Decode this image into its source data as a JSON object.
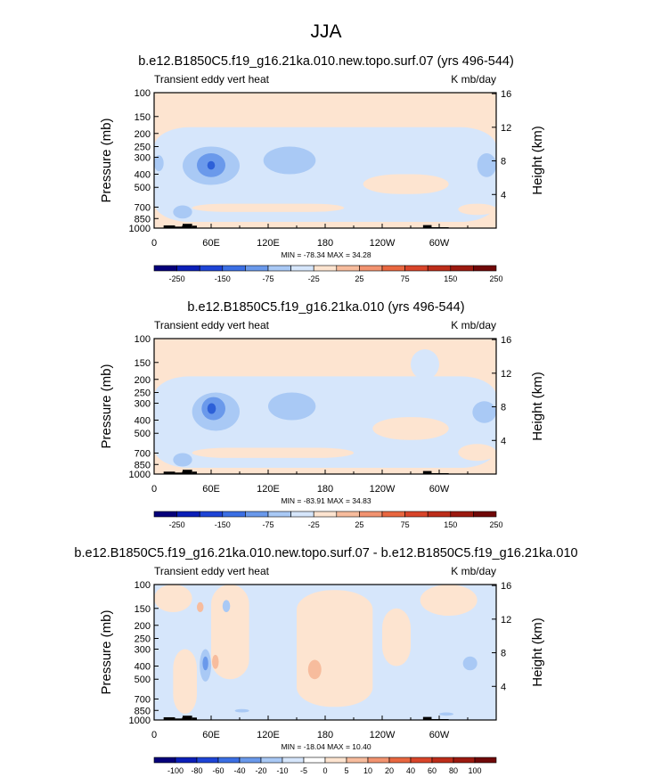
{
  "figure_title": "JJA",
  "chart_data": [
    {
      "type": "heatmap",
      "title": "b.e12.B1850C5.f19_g16.21ka.010.new.topo.surf.07 (yrs 496-544)",
      "left_label": "Transient eddy vert heat",
      "right_label": "K mb/day",
      "ylabel": "Pressure (mb)",
      "ylabel_right": "Height (km)",
      "x_ticks": [
        "0",
        "60E",
        "120E",
        "180",
        "120W",
        "60W"
      ],
      "x_tick_lon": [
        0,
        60,
        120,
        180,
        240,
        300
      ],
      "xlim": [
        0,
        360
      ],
      "y_ticks": [
        100,
        150,
        200,
        250,
        300,
        400,
        500,
        700,
        850,
        1000
      ],
      "ylim": [
        100,
        1000
      ],
      "y_scale": "log",
      "height_ticks": [
        4,
        8,
        12,
        16
      ],
      "stats": "MIN = -78.34   MAX =  34.28",
      "colorbar_levels": [
        "-250",
        "-150",
        "-75",
        "-25",
        "25",
        "75",
        "150",
        "250"
      ],
      "background_color": "#fde4d0",
      "features": [
        {
          "color": "#d6e6fb",
          "lon_range": [
            0,
            360
          ],
          "p_range": [
            180,
            900
          ]
        },
        {
          "color": "#a9c9f5",
          "lon_range": [
            30,
            90
          ],
          "p_range": [
            250,
            480
          ]
        },
        {
          "color": "#6a99eb",
          "lon_range": [
            45,
            75
          ],
          "p_range": [
            280,
            420
          ]
        },
        {
          "color": "#2d60d8",
          "lon_range": [
            56,
            64
          ],
          "p_range": [
            320,
            370
          ]
        },
        {
          "color": "#a9c9f5",
          "lon_range": [
            115,
            170
          ],
          "p_range": [
            250,
            400
          ]
        },
        {
          "color": "#a9c9f5",
          "lon_range": [
            340,
            360
          ],
          "p_range": [
            280,
            420
          ]
        },
        {
          "color": "#a9c9f5",
          "lon_range": [
            0,
            10
          ],
          "p_range": [
            290,
            380
          ]
        },
        {
          "color": "#a9c9f5",
          "lon_range": [
            20,
            40
          ],
          "p_range": [
            680,
            850
          ]
        },
        {
          "color": "#fde4d0",
          "lon_range": [
            220,
            310
          ],
          "p_range": [
            400,
            560
          ]
        },
        {
          "color": "#fde4d0",
          "lon_range": [
            40,
            200
          ],
          "p_range": [
            660,
            760
          ]
        },
        {
          "color": "#fde4d0",
          "lon_range": [
            320,
            360
          ],
          "p_range": [
            660,
            800
          ]
        }
      ],
      "topography": [
        {
          "lon_range": [
            10,
            22
          ],
          "p_top": 955
        },
        {
          "lon_range": [
            22,
            30
          ],
          "p_top": 975
        },
        {
          "lon_range": [
            30,
            40
          ],
          "p_top": 930
        },
        {
          "lon_range": [
            40,
            45
          ],
          "p_top": 960
        },
        {
          "lon_range": [
            283,
            292
          ],
          "p_top": 950
        },
        {
          "lon_range": [
            292,
            310
          ],
          "p_top": 985
        }
      ]
    },
    {
      "type": "heatmap",
      "title": "b.e12.B1850C5.f19_g16.21ka.010 (yrs 496-544)",
      "left_label": "Transient eddy vert heat",
      "right_label": "K mb/day",
      "ylabel": "Pressure (mb)",
      "ylabel_right": "Height (km)",
      "x_ticks": [
        "0",
        "60E",
        "120E",
        "180",
        "120W",
        "60W"
      ],
      "x_tick_lon": [
        0,
        60,
        120,
        180,
        240,
        300
      ],
      "xlim": [
        0,
        360
      ],
      "y_ticks": [
        100,
        150,
        200,
        250,
        300,
        400,
        500,
        700,
        850,
        1000
      ],
      "ylim": [
        100,
        1000
      ],
      "y_scale": "log",
      "height_ticks": [
        4,
        8,
        12,
        16
      ],
      "stats": "MIN = -83.91   MAX =  34.83",
      "colorbar_levels": [
        "-250",
        "-150",
        "-75",
        "-25",
        "25",
        "75",
        "150",
        "250"
      ],
      "background_color": "#fde4d0",
      "features": [
        {
          "color": "#d6e6fb",
          "lon_range": [
            0,
            360
          ],
          "p_range": [
            190,
            900
          ]
        },
        {
          "color": "#d6e6fb",
          "lon_range": [
            270,
            300
          ],
          "p_range": [
            120,
            200
          ]
        },
        {
          "color": "#a9c9f5",
          "lon_range": [
            40,
            90
          ],
          "p_range": [
            250,
            480
          ]
        },
        {
          "color": "#6a99eb",
          "lon_range": [
            50,
            75
          ],
          "p_range": [
            270,
            400
          ]
        },
        {
          "color": "#2d60d8",
          "lon_range": [
            56,
            65
          ],
          "p_range": [
            300,
            360
          ]
        },
        {
          "color": "#a9c9f5",
          "lon_range": [
            120,
            170
          ],
          "p_range": [
            250,
            400
          ]
        },
        {
          "color": "#a9c9f5",
          "lon_range": [
            335,
            360
          ],
          "p_range": [
            290,
            420
          ]
        },
        {
          "color": "#a9c9f5",
          "lon_range": [
            20,
            40
          ],
          "p_range": [
            700,
            880
          ]
        },
        {
          "color": "#fde4d0",
          "lon_range": [
            230,
            310
          ],
          "p_range": [
            380,
            560
          ]
        },
        {
          "color": "#fde4d0",
          "lon_range": [
            40,
            210
          ],
          "p_range": [
            640,
            760
          ]
        },
        {
          "color": "#fde4d0",
          "lon_range": [
            320,
            360
          ],
          "p_range": [
            600,
            800
          ]
        }
      ],
      "topography": [
        {
          "lon_range": [
            10,
            22
          ],
          "p_top": 960
        },
        {
          "lon_range": [
            22,
            30
          ],
          "p_top": 975
        },
        {
          "lon_range": [
            30,
            40
          ],
          "p_top": 930
        },
        {
          "lon_range": [
            40,
            45
          ],
          "p_top": 960
        },
        {
          "lon_range": [
            283,
            292
          ],
          "p_top": 950
        },
        {
          "lon_range": [
            292,
            310
          ],
          "p_top": 985
        }
      ]
    },
    {
      "type": "heatmap",
      "title": "b.e12.B1850C5.f19_g16.21ka.010.new.topo.surf.07 - b.e12.B1850C5.f19_g16.21ka.010",
      "left_label": "Transient eddy vert heat",
      "right_label": "K mb/day",
      "ylabel": "Pressure (mb)",
      "ylabel_right": "Height (km)",
      "x_ticks": [
        "0",
        "60E",
        "120E",
        "180",
        "120W",
        "60W"
      ],
      "x_tick_lon": [
        0,
        60,
        120,
        180,
        240,
        300
      ],
      "xlim": [
        0,
        360
      ],
      "y_ticks": [
        100,
        150,
        200,
        250,
        300,
        400,
        500,
        700,
        850,
        1000
      ],
      "ylim": [
        100,
        1000
      ],
      "y_scale": "log",
      "height_ticks": [
        4,
        8,
        12,
        16
      ],
      "stats": "MIN = -18.04   MAX =  10.40",
      "colorbar_levels": [
        "-100",
        "-80",
        "-60",
        "-40",
        "-20",
        "-10",
        "-5",
        "0",
        "5",
        "10",
        "20",
        "40",
        "60",
        "80",
        "100"
      ],
      "background_color": "#d6e6fb",
      "features": [
        {
          "color": "#fde4d0",
          "lon_range": [
            0,
            40
          ],
          "p_range": [
            100,
            160
          ]
        },
        {
          "color": "#fde4d0",
          "lon_range": [
            60,
            100
          ],
          "p_range": [
            100,
            500
          ]
        },
        {
          "color": "#fde4d0",
          "lon_range": [
            150,
            230
          ],
          "p_range": [
            110,
            800
          ]
        },
        {
          "color": "#fde4d0",
          "lon_range": [
            240,
            270
          ],
          "p_range": [
            150,
            400
          ]
        },
        {
          "color": "#fde4d0",
          "lon_range": [
            280,
            340
          ],
          "p_range": [
            100,
            170
          ]
        },
        {
          "color": "#fde4d0",
          "lon_range": [
            20,
            45
          ],
          "p_range": [
            300,
            900
          ]
        },
        {
          "color": "#f7bc9d",
          "lon_range": [
            45,
            52
          ],
          "p_range": [
            135,
            160
          ]
        },
        {
          "color": "#f7bc9d",
          "lon_range": [
            61,
            68
          ],
          "p_range": [
            330,
            420
          ]
        },
        {
          "color": "#f7bc9d",
          "lon_range": [
            162,
            176
          ],
          "p_range": [
            360,
            500
          ]
        },
        {
          "color": "#a9c9f5",
          "lon_range": [
            48,
            60
          ],
          "p_range": [
            300,
            520
          ]
        },
        {
          "color": "#6a99eb",
          "lon_range": [
            51,
            57
          ],
          "p_range": [
            340,
            430
          ]
        },
        {
          "color": "#a9c9f5",
          "lon_range": [
            72,
            80
          ],
          "p_range": [
            130,
            160
          ]
        },
        {
          "color": "#a9c9f5",
          "lon_range": [
            325,
            340
          ],
          "p_range": [
            340,
            430
          ]
        },
        {
          "color": "#a9c9f5",
          "lon_range": [
            85,
            100
          ],
          "p_range": [
            830,
            880
          ]
        },
        {
          "color": "#a9c9f5",
          "lon_range": [
            300,
            315
          ],
          "p_range": [
            880,
            930
          ]
        }
      ],
      "topography": [
        {
          "lon_range": [
            10,
            22
          ],
          "p_top": 955
        },
        {
          "lon_range": [
            22,
            30
          ],
          "p_top": 975
        },
        {
          "lon_range": [
            30,
            40
          ],
          "p_top": 930
        },
        {
          "lon_range": [
            40,
            45
          ],
          "p_top": 960
        },
        {
          "lon_range": [
            283,
            292
          ],
          "p_top": 950
        },
        {
          "lon_range": [
            292,
            310
          ],
          "p_top": 985
        }
      ]
    }
  ],
  "colorbar_colors_main": [
    "#06007a",
    "#0b1fb8",
    "#1e44d6",
    "#3b6fe4",
    "#6a99eb",
    "#a9c9f5",
    "#d6e6fb",
    "#fde4d0",
    "#f7bc9d",
    "#f29370",
    "#e96740",
    "#d9452a",
    "#bd2d1a",
    "#9c1a10",
    "#700808"
  ],
  "colorbar_colors_diff": [
    "#06007a",
    "#0b1fb8",
    "#1e44d6",
    "#3b6fe4",
    "#6a99eb",
    "#a9c9f5",
    "#d6e6fb",
    "#ffffff",
    "#fde4d0",
    "#f7bc9d",
    "#f29370",
    "#e96740",
    "#d9452a",
    "#bd2d1a",
    "#9c1a10",
    "#700808"
  ]
}
